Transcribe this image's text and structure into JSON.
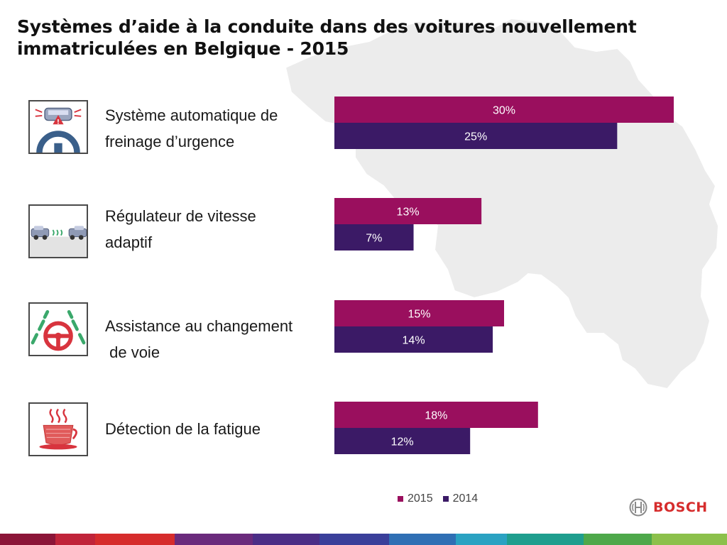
{
  "title_line1": "Systèmes d’aide à la conduite dans des voitures nouvellement",
  "title_line2": "immatriculées en Belgique - 2015",
  "rows": [
    {
      "label_line1": "Système automatique de",
      "label_line2": "freinage d’urgence",
      "icon": "emergency-braking-icon"
    },
    {
      "label_line1": "Régulateur de vitesse",
      "label_line2": "adaptif",
      "icon": "adaptive-cruise-icon"
    },
    {
      "label_line1": "Assistance au changement",
      "label_line2": " de voie",
      "icon": "lane-assist-icon"
    },
    {
      "label_line1": "Détection de la fatigue",
      "label_line2": "",
      "icon": "coffee-cup-icon"
    }
  ],
  "chart_data": {
    "type": "bar",
    "orientation": "horizontal",
    "categories": [
      "Système automatique de freinage d’urgence",
      "Régulateur de vitesse adaptif",
      "Assistance au changement de voie",
      "Détection de la fatigue"
    ],
    "series": [
      {
        "name": "2015",
        "values": [
          30,
          13,
          15,
          18
        ],
        "labels": [
          "30%",
          "13%",
          "15%",
          "18%"
        ],
        "color": "#9a0f5e"
      },
      {
        "name": "2014",
        "values": [
          25,
          7,
          14,
          12
        ],
        "labels": [
          "25%",
          "7%",
          "14%",
          "12%"
        ],
        "color": "#3b1a66"
      }
    ],
    "xlim": [
      0,
      30
    ],
    "grid": false,
    "legend_position": "bottom"
  },
  "logo": {
    "text": "BOSCH",
    "icon": "bosch-armature-icon"
  },
  "stripe_colors": [
    "#8b1538",
    "#c0243a",
    "#d62c2c",
    "#6a2a7c",
    "#4b2d86",
    "#3a3f9a",
    "#2f6fb4",
    "#2aa2c2",
    "#1f9e8e",
    "#4ea84a",
    "#8cc04b"
  ]
}
